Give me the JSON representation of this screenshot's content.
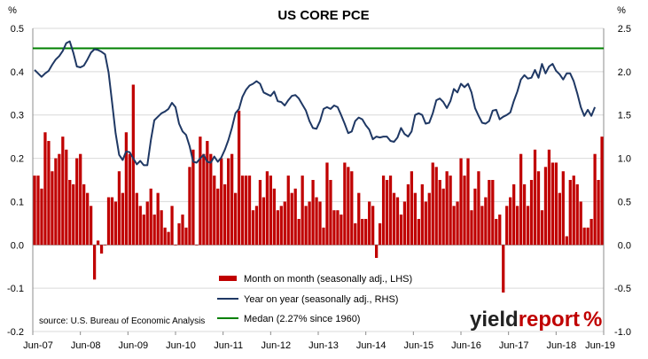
{
  "chart_data": {
    "type": "bar+line",
    "title": "US CORE PCE",
    "left_unit": "%",
    "right_unit": "%",
    "left_axis": {
      "min": -0.2,
      "max": 0.5,
      "ticks": [
        "-0.2",
        "-0.1",
        "0.0",
        "0.1",
        "0.2",
        "0.3",
        "0.4",
        "0.5"
      ]
    },
    "right_axis": {
      "min": -1.0,
      "max": 2.5,
      "ticks": [
        "-1.0",
        "-0.5",
        "0.0",
        "0.5",
        "1.0",
        "1.5",
        "2.0",
        "2.5"
      ]
    },
    "x_tick_labels": [
      "Jun-07",
      "Jun-08",
      "Jun-09",
      "Jun-10",
      "Jun-11",
      "Jun-12",
      "Jun-13",
      "Jun-14",
      "Jun-15",
      "Jun-16",
      "Jun-17",
      "Jun-18",
      "Jun-19"
    ],
    "x_start": "Jun-07",
    "x_end": "Jun-19",
    "series": [
      {
        "name": "Month on month (seasonally adj., LHS)",
        "kind": "bar",
        "axis": "left",
        "color": "#c00000",
        "values": [
          0.16,
          0.16,
          0.13,
          0.26,
          0.24,
          0.17,
          0.2,
          0.21,
          0.25,
          0.22,
          0.15,
          0.14,
          0.2,
          0.21,
          0.14,
          0.12,
          0.09,
          -0.08,
          0.01,
          -0.02,
          0.0,
          0.11,
          0.11,
          0.1,
          0.17,
          0.12,
          0.26,
          0.21,
          0.37,
          0.12,
          0.09,
          0.07,
          0.1,
          0.13,
          0.07,
          0.12,
          0.08,
          0.04,
          0.03,
          0.09,
          0.0,
          0.05,
          0.07,
          0.04,
          0.18,
          0.22,
          0.0,
          0.25,
          0.21,
          0.24,
          0.21,
          0.16,
          0.13,
          0.2,
          0.14,
          0.2,
          0.21,
          0.12,
          0.31,
          0.16,
          0.16,
          0.16,
          0.08,
          0.09,
          0.15,
          0.11,
          0.17,
          0.16,
          0.13,
          0.08,
          0.09,
          0.1,
          0.16,
          0.12,
          0.13,
          0.06,
          0.16,
          0.09,
          0.1,
          0.15,
          0.11,
          0.1,
          0.04,
          0.19,
          0.15,
          0.08,
          0.08,
          0.07,
          0.19,
          0.18,
          0.17,
          0.05,
          0.12,
          0.06,
          0.06,
          0.1,
          0.09,
          -0.03,
          0.05,
          0.16,
          0.15,
          0.16,
          0.12,
          0.11,
          0.07,
          0.1,
          0.14,
          0.17,
          0.12,
          0.06,
          0.14,
          0.1,
          0.12,
          0.19,
          0.18,
          0.15,
          0.13,
          0.17,
          0.16,
          0.09,
          0.1,
          0.2,
          0.16,
          0.2,
          0.08,
          0.13,
          0.17,
          0.09,
          0.11,
          0.15,
          0.15,
          0.06,
          0.07,
          -0.11,
          0.09,
          0.11,
          0.14,
          0.09,
          0.21,
          0.14,
          0.09,
          0.15,
          0.22,
          0.17,
          0.08,
          0.18,
          0.22,
          0.19,
          0.19,
          0.12,
          0.17,
          0.02,
          0.15,
          0.16,
          0.14,
          0.1,
          0.04,
          0.04,
          0.06,
          0.21,
          0.15,
          0.25
        ]
      },
      {
        "name": "Year on year (seasonally adj., RHS)",
        "kind": "line",
        "axis": "right",
        "color": "#1f3864",
        "values": [
          2.02,
          1.98,
          1.94,
          1.98,
          2.01,
          2.08,
          2.14,
          2.18,
          2.24,
          2.33,
          2.35,
          2.22,
          2.06,
          2.05,
          2.07,
          2.14,
          2.22,
          2.26,
          2.25,
          2.23,
          2.2,
          1.99,
          1.65,
          1.29,
          1.04,
          0.98,
          1.08,
          1.07,
          1.0,
          0.93,
          0.97,
          0.92,
          0.92,
          1.21,
          1.44,
          1.48,
          1.52,
          1.54,
          1.57,
          1.64,
          1.59,
          1.4,
          1.31,
          1.27,
          1.14,
          0.96,
          0.95,
          1.0,
          1.04,
          0.96,
          0.95,
          1.02,
          0.96,
          1.01,
          1.1,
          1.21,
          1.35,
          1.52,
          1.57,
          1.71,
          1.79,
          1.84,
          1.86,
          1.89,
          1.86,
          1.76,
          1.74,
          1.72,
          1.77,
          1.66,
          1.65,
          1.61,
          1.67,
          1.72,
          1.73,
          1.69,
          1.62,
          1.55,
          1.43,
          1.35,
          1.34,
          1.43,
          1.57,
          1.59,
          1.57,
          1.61,
          1.59,
          1.5,
          1.4,
          1.29,
          1.31,
          1.43,
          1.47,
          1.45,
          1.38,
          1.33,
          1.22,
          1.25,
          1.24,
          1.25,
          1.25,
          1.2,
          1.19,
          1.24,
          1.35,
          1.28,
          1.25,
          1.31,
          1.5,
          1.52,
          1.5,
          1.4,
          1.41,
          1.52,
          1.67,
          1.69,
          1.65,
          1.58,
          1.66,
          1.8,
          1.76,
          1.86,
          1.82,
          1.86,
          1.76,
          1.58,
          1.49,
          1.41,
          1.4,
          1.43,
          1.55,
          1.56,
          1.45,
          1.48,
          1.5,
          1.53,
          1.66,
          1.77,
          1.91,
          1.96,
          1.92,
          1.93,
          2.02,
          1.93,
          2.09,
          1.98,
          2.06,
          2.09,
          2.01,
          1.97,
          1.91,
          1.98,
          1.98,
          1.89,
          1.75,
          1.59,
          1.49,
          1.56,
          1.49,
          1.59
        ]
      },
      {
        "name": "Medan (2.27% since 1960)",
        "kind": "hline",
        "axis": "right",
        "color": "#008000",
        "value": 2.27
      }
    ],
    "legend_position": "bottom-center",
    "gridlines": true
  },
  "source": "source: U.S. Bureau of Economic Analysis",
  "brand": {
    "part1": "yield",
    "part2": "report",
    "symbol": "%",
    "color_dark": "#222222",
    "color_red": "#c00000"
  }
}
